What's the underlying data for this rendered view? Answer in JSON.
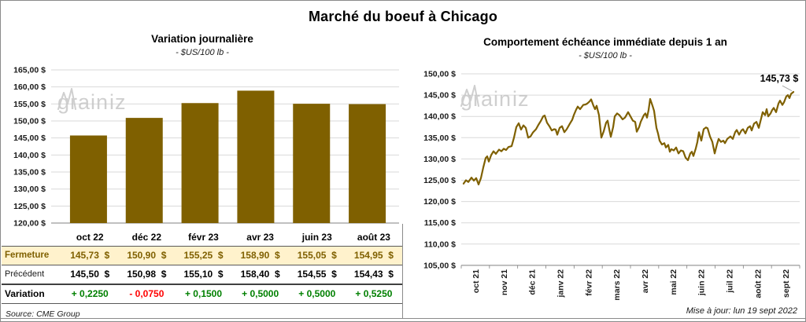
{
  "page": {
    "title": "Marché du boeuf à Chicago",
    "source": "Source: CME Group",
    "updated": "Mise à jour: lun 19 sept 2022",
    "watermark": {
      "pre": "grain",
      "post": "iz"
    }
  },
  "colors": {
    "gold": "#7F6000",
    "cream": "#FFF2CC",
    "green": "#008000",
    "red": "#FF0000",
    "grid": "#D9D9D9",
    "axis": "#808080",
    "leader": "#A6A6A6"
  },
  "chart_data": [
    {
      "id": "daily-variation-bar",
      "type": "bar",
      "title": "Variation journalière",
      "subtitle": "- $US/100 lb -",
      "categories": [
        "oct 22",
        "déc 22",
        "févr 23",
        "avr 23",
        "juin 23",
        "août 23"
      ],
      "values": [
        145.73,
        150.9,
        155.25,
        158.9,
        155.05,
        154.95
      ],
      "ylim": [
        120,
        165
      ],
      "ytick_step": 5,
      "yticks": [
        "165,00 $",
        "160,00 $",
        "155,00 $",
        "150,00 $",
        "145,00 $",
        "140,00 $",
        "135,00 $",
        "130,00 $",
        "125,00 $",
        "120,00 $"
      ],
      "grid": true,
      "legend": "none"
    },
    {
      "id": "immediate-maturity-line",
      "type": "line",
      "title": "Comportement échéance immédiate depuis 1 an",
      "subtitle": "- $US/100 lb -",
      "x_labels": [
        "oct 21",
        "nov 21",
        "déc 21",
        "janv 22",
        "févr 22",
        "mars 22",
        "avr 22",
        "mai 22",
        "juin 22",
        "juil 22",
        "août 22",
        "sept 22"
      ],
      "ylim": [
        105,
        150
      ],
      "ytick_step": 5,
      "yticks": [
        "150,00 $",
        "145,00 $",
        "140,00 $",
        "135,00 $",
        "130,00 $",
        "125,00 $",
        "120,00 $",
        "115,00 $",
        "110,00 $",
        "105,00 $"
      ],
      "grid": true,
      "legend": "none",
      "annotation": {
        "label": "145,73 $",
        "value": 145.73
      },
      "points": [
        [
          0,
          124.2
        ],
        [
          3,
          125.0
        ],
        [
          6,
          124.6
        ],
        [
          10,
          125.6
        ],
        [
          13,
          124.9
        ],
        [
          16,
          125.5
        ],
        [
          19,
          124.0
        ],
        [
          22,
          125.5
        ],
        [
          25,
          128.0
        ],
        [
          28,
          130.2
        ],
        [
          30,
          130.6
        ],
        [
          32,
          129.4
        ],
        [
          35,
          130.9
        ],
        [
          38,
          131.8
        ],
        [
          41,
          131.2
        ],
        [
          45,
          132.2
        ],
        [
          48,
          131.8
        ],
        [
          51,
          132.4
        ],
        [
          54,
          132.1
        ],
        [
          57,
          132.8
        ],
        [
          61,
          133.0
        ],
        [
          64,
          135.0
        ],
        [
          67,
          137.5
        ],
        [
          70,
          138.4
        ],
        [
          73,
          136.9
        ],
        [
          76,
          137.9
        ],
        [
          79,
          137.3
        ],
        [
          82,
          135.0
        ],
        [
          85,
          135.3
        ],
        [
          88,
          136.2
        ],
        [
          92,
          137.0
        ],
        [
          95,
          138.0
        ],
        [
          98,
          138.9
        ],
        [
          101,
          140.0
        ],
        [
          103,
          140.2
        ],
        [
          106,
          138.5
        ],
        [
          109,
          137.7
        ],
        [
          112,
          136.7
        ],
        [
          115,
          137.0
        ],
        [
          117,
          136.9
        ],
        [
          119,
          135.7
        ],
        [
          122,
          137.3
        ],
        [
          125,
          137.7
        ],
        [
          128,
          136.3
        ],
        [
          131,
          137.0
        ],
        [
          135,
          138.3
        ],
        [
          138,
          139.2
        ],
        [
          140,
          140.3
        ],
        [
          143,
          141.6
        ],
        [
          145,
          142.3
        ],
        [
          148,
          141.7
        ],
        [
          152,
          142.7
        ],
        [
          155,
          142.8
        ],
        [
          157,
          143.0
        ],
        [
          160,
          143.5
        ],
        [
          162,
          144.0
        ],
        [
          165,
          142.5
        ],
        [
          167,
          141.7
        ],
        [
          169,
          142.5
        ],
        [
          172,
          140.3
        ],
        [
          175,
          135.0
        ],
        [
          178,
          136.5
        ],
        [
          181,
          138.5
        ],
        [
          183,
          139.0
        ],
        [
          185,
          137.0
        ],
        [
          187,
          135.2
        ],
        [
          190,
          137.5
        ],
        [
          192,
          140.0
        ],
        [
          195,
          140.7
        ],
        [
          198,
          140.3
        ],
        [
          202,
          139.3
        ],
        [
          205,
          139.7
        ],
        [
          209,
          141.0
        ],
        [
          212,
          140.0
        ],
        [
          215,
          139.0
        ],
        [
          218,
          138.7
        ],
        [
          220,
          136.4
        ],
        [
          223,
          137.5
        ],
        [
          225,
          138.7
        ],
        [
          229,
          140.3
        ],
        [
          231,
          140.7
        ],
        [
          233,
          139.7
        ],
        [
          235,
          141.5
        ],
        [
          237,
          144.1
        ],
        [
          240,
          142.5
        ],
        [
          242,
          141.3
        ],
        [
          245,
          137.3
        ],
        [
          247,
          136.0
        ],
        [
          249,
          134.3
        ],
        [
          252,
          133.4
        ],
        [
          255,
          133.7
        ],
        [
          257,
          132.7
        ],
        [
          260,
          133.3
        ],
        [
          262,
          131.7
        ],
        [
          264,
          132.3
        ],
        [
          267,
          132.0
        ],
        [
          270,
          132.7
        ],
        [
          273,
          131.3
        ],
        [
          276,
          132.0
        ],
        [
          279,
          131.8
        ],
        [
          282,
          130.3
        ],
        [
          285,
          129.7
        ],
        [
          288,
          131.3
        ],
        [
          290,
          131.7
        ],
        [
          292,
          130.7
        ],
        [
          295,
          132.5
        ],
        [
          297,
          134.0
        ],
        [
          299,
          136.3
        ],
        [
          302,
          134.3
        ],
        [
          305,
          137.0
        ],
        [
          308,
          137.4
        ],
        [
          310,
          137.2
        ],
        [
          313,
          135.3
        ],
        [
          316,
          134.0
        ],
        [
          319,
          131.3
        ],
        [
          322,
          133.5
        ],
        [
          324,
          134.7
        ],
        [
          327,
          134.0
        ],
        [
          330,
          134.3
        ],
        [
          332,
          133.7
        ],
        [
          335,
          134.7
        ],
        [
          339,
          135.3
        ],
        [
          342,
          134.7
        ],
        [
          345,
          136.3
        ],
        [
          347,
          136.8
        ],
        [
          350,
          135.7
        ],
        [
          353,
          136.7
        ],
        [
          355,
          137.0
        ],
        [
          358,
          136.0
        ],
        [
          361,
          137.3
        ],
        [
          364,
          137.7
        ],
        [
          366,
          136.7
        ],
        [
          369,
          138.3
        ],
        [
          372,
          138.7
        ],
        [
          375,
          137.3
        ],
        [
          378,
          139.5
        ],
        [
          380,
          141.0
        ],
        [
          383,
          140.3
        ],
        [
          385,
          141.7
        ],
        [
          387,
          140.0
        ],
        [
          390,
          140.7
        ],
        [
          392,
          141.5
        ],
        [
          394,
          142.0
        ],
        [
          397,
          141.0
        ],
        [
          400,
          143.0
        ],
        [
          402,
          143.7
        ],
        [
          405,
          142.7
        ],
        [
          407,
          143.3
        ],
        [
          410,
          144.7
        ],
        [
          412,
          145.0
        ],
        [
          414,
          144.3
        ],
        [
          416,
          145.3
        ],
        [
          419,
          145.73
        ]
      ]
    }
  ],
  "table": {
    "columns": [
      "oct 22",
      "déc 22",
      "févr 23",
      "avr 23",
      "juin 23",
      "août 23"
    ],
    "rows": [
      {
        "label": "Fermeture",
        "values": [
          "145,73  $",
          "150,90  $",
          "155,25  $",
          "158,90  $",
          "155,05  $",
          "154,95  $"
        ]
      },
      {
        "label": "Précédent",
        "values": [
          "145,50  $",
          "150,98  $",
          "155,10  $",
          "158,40  $",
          "154,55  $",
          "154,43  $"
        ]
      },
      {
        "label": "Variation",
        "values": [
          "+ 0,2250",
          "- 0,0750",
          "+ 0,1500",
          "+ 0,5000",
          "+ 0,5000",
          "+ 0,5250"
        ]
      }
    ]
  }
}
